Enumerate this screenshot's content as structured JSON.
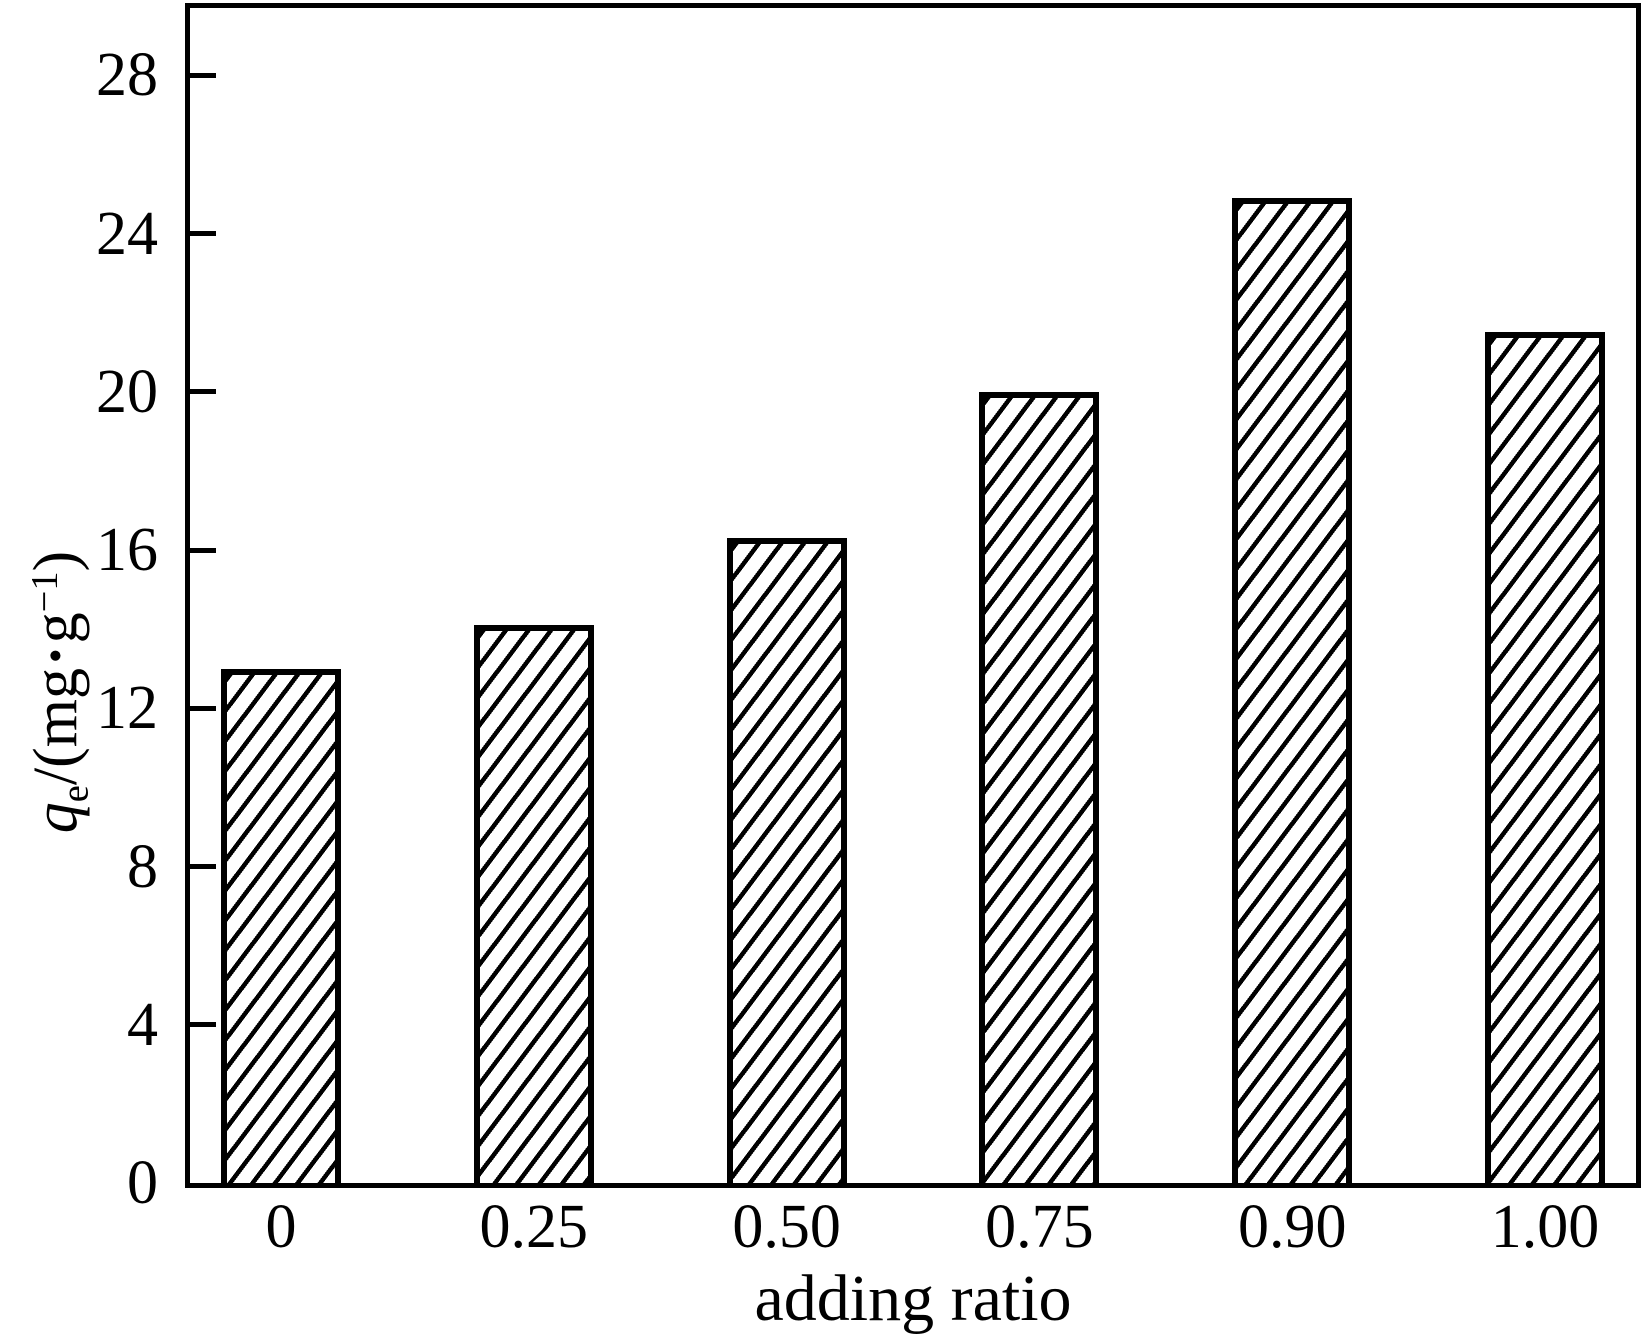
{
  "figure": {
    "background_color": "#ffffff",
    "line_color": "#000000"
  },
  "chart_data": {
    "type": "bar",
    "title": "",
    "categories": [
      "0",
      "0.25",
      "0.50",
      "0.75",
      "0.90",
      "1.00"
    ],
    "values": [
      13.0,
      14.1,
      16.3,
      20.0,
      24.9,
      21.5
    ],
    "xlabel": "adding ratio",
    "ylabel": "qe/(mg·g−1)",
    "ylabel_parts": {
      "variable": "q",
      "variable_sub": "e",
      "divider": "/(mg",
      "dot": "·",
      "unit": "g",
      "exponent": "−1",
      "close_paren": ")"
    },
    "yticks": [
      0,
      4,
      8,
      12,
      16,
      20,
      24,
      28
    ],
    "ylim": [
      0,
      29.7
    ],
    "xlim_note": "categorical axis",
    "grid": false,
    "legend": "none",
    "bar_style": {
      "fill": "#ffffff",
      "edge_color": "#000000",
      "hatch": "forward-diagonal"
    }
  }
}
